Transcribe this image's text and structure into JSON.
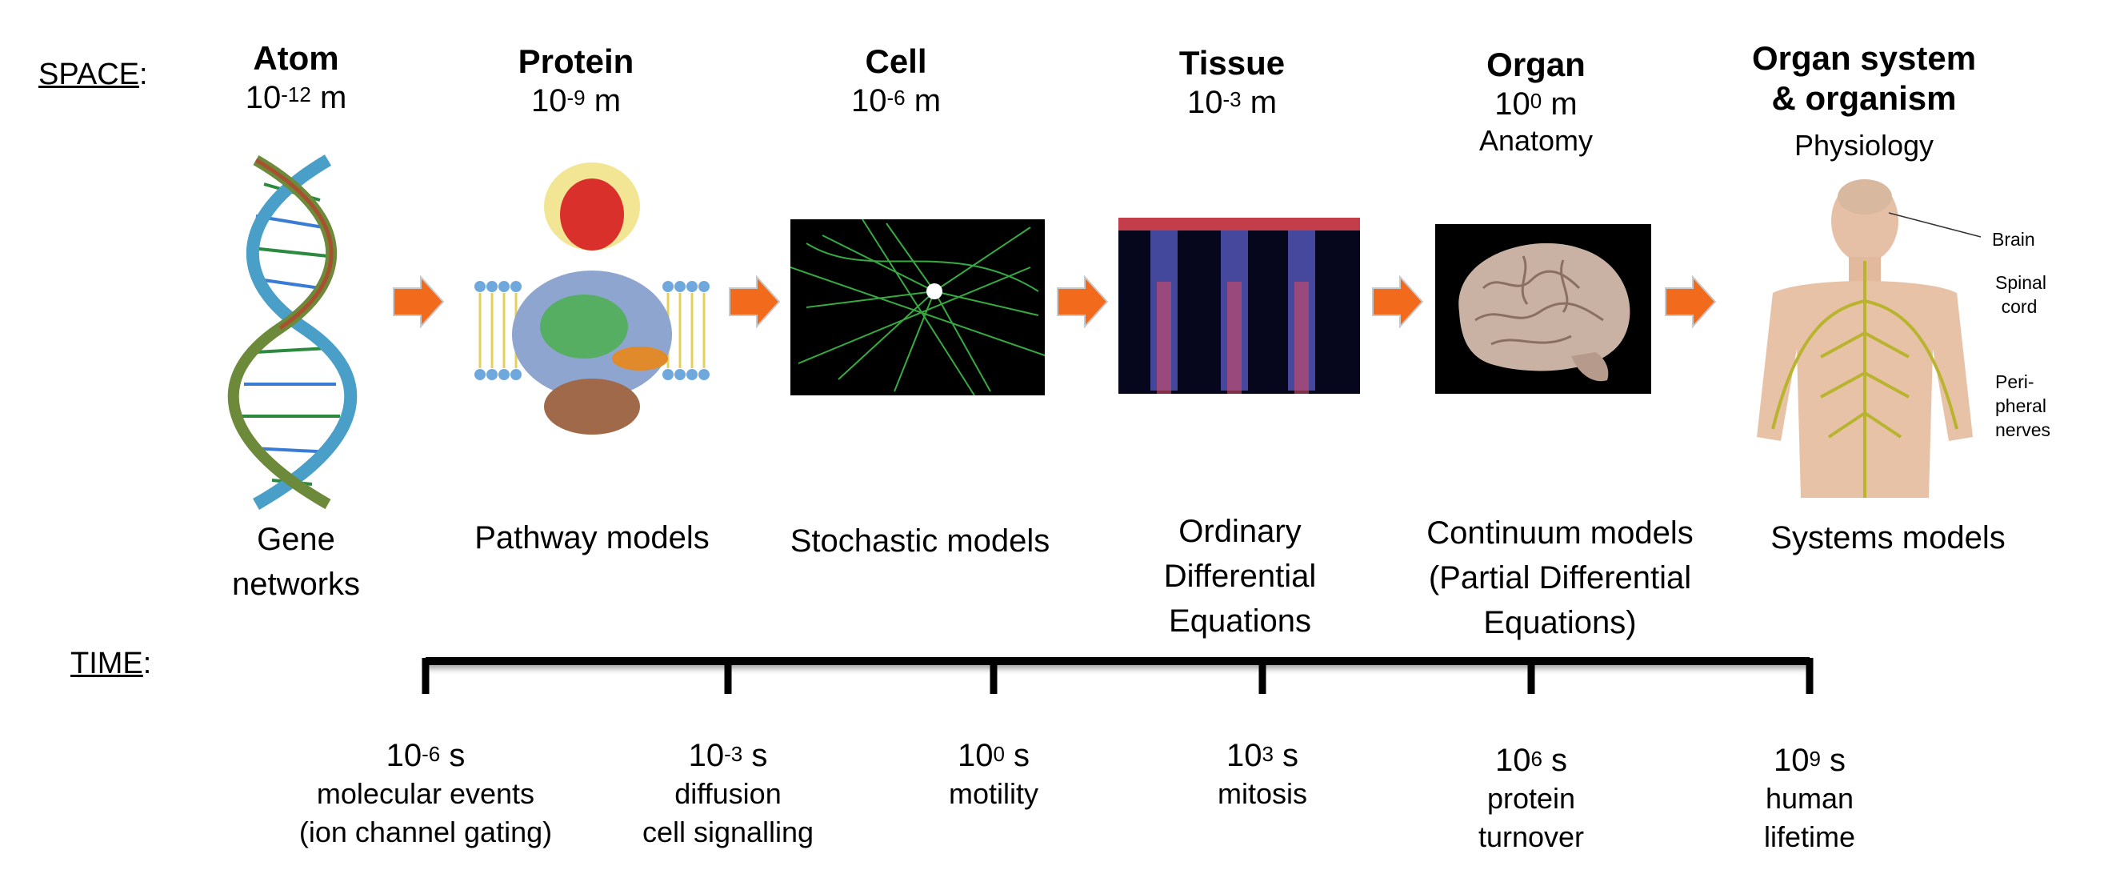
{
  "space_label": "SPACE",
  "time_label": "TIME",
  "scales": [
    {
      "name": "Atom",
      "base": "10",
      "exp": "-12",
      "unit": "m",
      "sub": "",
      "model": "Gene networks"
    },
    {
      "name": "Protein",
      "base": "10",
      "exp": "-9",
      "unit": "m",
      "sub": "",
      "model": "Pathway models"
    },
    {
      "name": "Cell",
      "base": "10",
      "exp": "-6",
      "unit": "m",
      "sub": "",
      "model": "Stochastic models"
    },
    {
      "name": "Tissue",
      "base": "10",
      "exp": "-3",
      "unit": "m",
      "sub": "",
      "model": "Ordinary Differential Equations"
    },
    {
      "name": "Organ",
      "base": "10",
      "exp": "0",
      "unit": "m",
      "sub": "Anatomy",
      "model": "Continuum models (Partial Differential Equations)"
    },
    {
      "name": "Organ system & organism",
      "base": "",
      "exp": "",
      "unit": "",
      "sub": "Physiology",
      "model": "Systems models"
    }
  ],
  "body_labels": [
    "Brain",
    "Spinal cord",
    "Peri- pheral nerves"
  ],
  "timeline": [
    {
      "base": "10",
      "exp": "-6",
      "unit": "s",
      "desc": [
        "molecular events",
        "(ion channel gating)"
      ]
    },
    {
      "base": "10",
      "exp": "-3",
      "unit": "s",
      "desc": [
        "diffusion",
        "cell signalling"
      ]
    },
    {
      "base": "10",
      "exp": "0",
      "unit": "s",
      "desc": [
        "motility"
      ]
    },
    {
      "base": "10",
      "exp": "3",
      "unit": "s",
      "desc": [
        "mitosis"
      ]
    },
    {
      "base": "10",
      "exp": "6",
      "unit": "s",
      "desc": [
        "protein",
        "turnover"
      ]
    },
    {
      "base": "10",
      "exp": "9",
      "unit": "s",
      "desc": [
        "human",
        "lifetime"
      ]
    }
  ],
  "colors": {
    "arrow": "#f26b1d",
    "arrow_edge": "#c9c9c9",
    "timeline": "#000000"
  }
}
